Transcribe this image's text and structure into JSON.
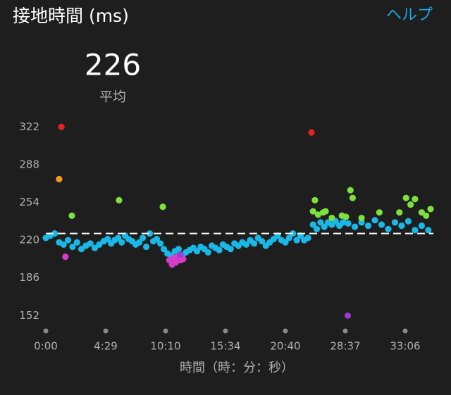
{
  "header": {
    "title": "接地時間 (ms)",
    "help": "ヘルプ"
  },
  "summary": {
    "value": 226,
    "label": "平均"
  },
  "chart_data": {
    "type": "scatter",
    "xlabel": "時間（時：分：秒）",
    "xlim": [
      0,
      2110
    ],
    "xticks": [
      {
        "value": 0,
        "label": "0:00"
      },
      {
        "value": 269,
        "label": "4:29"
      },
      {
        "value": 610,
        "label": "10:10"
      },
      {
        "value": 934,
        "label": "15:34"
      },
      {
        "value": 1240,
        "label": "20:40"
      },
      {
        "value": 1717,
        "label": "28:37"
      },
      {
        "value": 1986,
        "label": "33:06"
      }
    ],
    "ylim": [
      148,
      328
    ],
    "yticks": [
      152,
      186,
      220,
      254,
      288,
      322
    ],
    "reference_line": 226,
    "series": [
      {
        "color": "#1ab8e6",
        "x": [
          0,
          20,
          40,
          60,
          80,
          100,
          120,
          140,
          160,
          180,
          200,
          220,
          240,
          260,
          280,
          300,
          320,
          340,
          360,
          380,
          400,
          420,
          440,
          460,
          480,
          500,
          520,
          540,
          560,
          580,
          600,
          620,
          640,
          660,
          680,
          700,
          720,
          740,
          760,
          780,
          800,
          820,
          840,
          860,
          880,
          900,
          920,
          940,
          960,
          980,
          1000,
          1020,
          1040,
          1060,
          1080,
          1100,
          1120,
          1140,
          1160,
          1180,
          1200,
          1220,
          1240,
          1270,
          1300,
          1330,
          1360,
          1390,
          1420,
          1460,
          1490,
          1520,
          1550,
          1580,
          1610,
          1640,
          1670,
          1700,
          1730,
          1760,
          1790,
          1820,
          1850,
          1880,
          1910,
          1940,
          1970,
          2000,
          2030,
          2060,
          2090
        ],
        "values": [
          222,
          224,
          226,
          218,
          216,
          220,
          214,
          218,
          212,
          215,
          217,
          213,
          216,
          219,
          221,
          217,
          220,
          222,
          218,
          224,
          221,
          219,
          216,
          218,
          222,
          214,
          226,
          219,
          221,
          217,
          212,
          208,
          206,
          210,
          212,
          206,
          209,
          211,
          213,
          210,
          214,
          212,
          209,
          215,
          213,
          211,
          216,
          214,
          212,
          217,
          215,
          218,
          216,
          220,
          217,
          222,
          219,
          215,
          218,
          221,
          224,
          220,
          218,
          222,
          226,
          220,
          224,
          220,
          222,
          234,
          230,
          236,
          232,
          236,
          234,
          237,
          233,
          236,
          235,
          232,
          236,
          233,
          238,
          234,
          230,
          236,
          233,
          237,
          229,
          233,
          229
        ]
      },
      {
        "color": "#d63cc8",
        "x": [
          88,
          630,
          645,
          655,
          665,
          675,
          690,
          705
        ],
        "values": [
          205,
          202,
          198,
          204,
          200,
          205,
          202,
          203
        ]
      },
      {
        "color": "#7ee03c",
        "x": [
          117,
          345,
          594,
          1460,
          1475,
          1500,
          1540,
          1560,
          1610,
          1690,
          1720,
          1740,
          1750,
          1790,
          1870,
          1960,
          1990,
          2010,
          2030,
          2060,
          2080,
          2100
        ],
        "values": [
          242,
          256,
          250,
          246,
          256,
          243,
          245,
          246,
          240,
          242,
          241,
          265,
          258,
          240,
          245,
          245,
          258,
          252,
          257,
          245,
          242,
          248
        ]
      },
      {
        "color": "#f59a1e",
        "x": [
          60
        ],
        "values": [
          275
        ]
      },
      {
        "color": "#e8202a",
        "x": [
          70,
          1448
        ],
        "values": [
          322,
          317
        ]
      },
      {
        "color": "#9b3ccf",
        "x": [
          690,
          1728
        ],
        "values": [
          207,
          152
        ]
      }
    ]
  }
}
